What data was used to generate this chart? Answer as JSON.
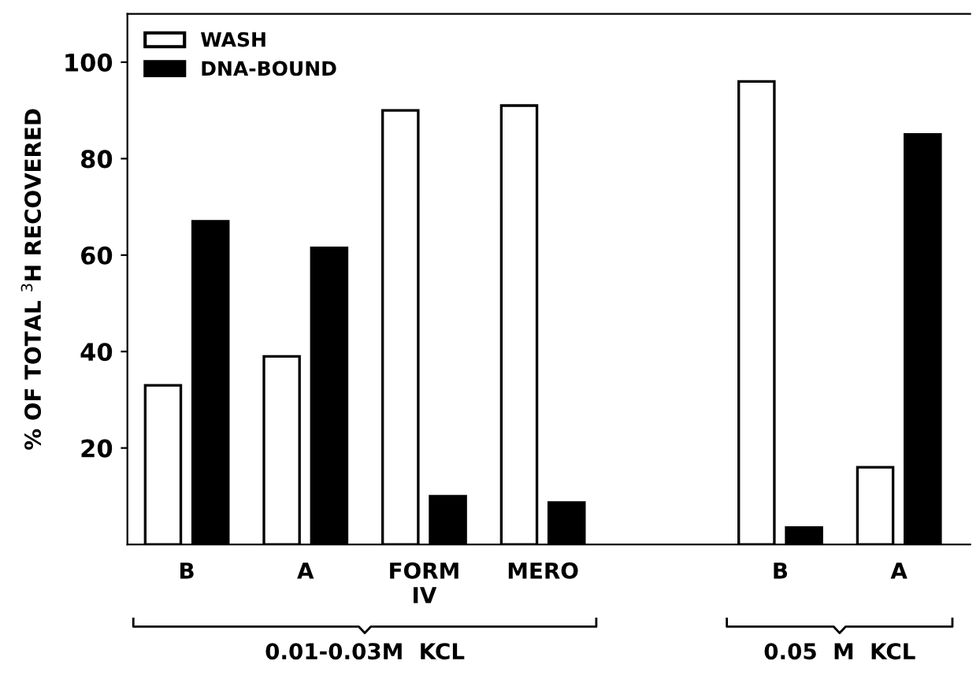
{
  "chart_data": {
    "type": "bar",
    "ylabel": "% OF TOTAL $^{3}$H RECOVERED",
    "categories": [
      "B",
      "A",
      "FORM\nIV",
      "MERO",
      null,
      "B",
      "A"
    ],
    "series": [
      {
        "name": "WASH",
        "color": "#ffffff",
        "values": [
          33,
          39,
          90,
          91,
          null,
          96,
          16
        ]
      },
      {
        "name": "DNA-BOUND",
        "color": "#000000",
        "values": [
          67,
          61.5,
          10,
          8.7,
          null,
          3.5,
          85
        ]
      }
    ],
    "ylim": [
      0,
      110
    ],
    "yticks": [
      20,
      40,
      60,
      80,
      100
    ],
    "grid": false,
    "legend": "top left",
    "annotations": [
      "0.01-0.03M  KCL",
      "0.05  M  KCL"
    ]
  }
}
